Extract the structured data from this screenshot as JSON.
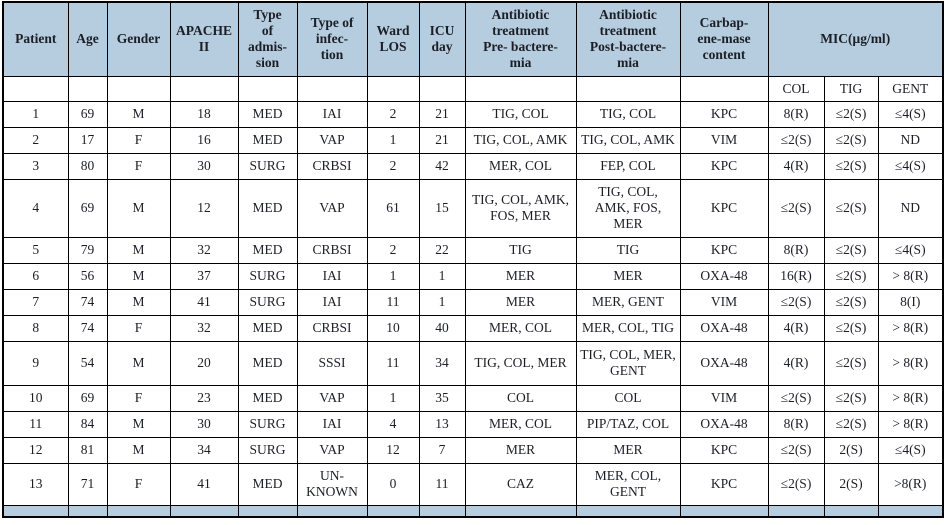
{
  "colors": {
    "header_background": "#b5cdde",
    "grid_line": "#000000",
    "text": "#1c1e26"
  },
  "header": {
    "columns": [
      "Patient",
      "Age",
      "Gender",
      "APACHE\nII",
      "Type\nof\nadmis-\nsion",
      "Type of\ninfec-\ntion",
      "Ward\nLOS",
      "ICU\nday",
      "Antibiotic\ntreatment\nPre- bactere-\nmia",
      "Antibiotic\ntreatment\nPost-bactere-\nmia",
      "Carbap-\nene-mase\ncontent"
    ],
    "mic_label": "MIC(μg/ml)",
    "mic_subcolumns": [
      "COL",
      "TIG",
      "GENT"
    ]
  },
  "rows": [
    [
      "1",
      "69",
      "M",
      "18",
      "MED",
      "IAI",
      "2",
      "21",
      "TIG, COL",
      "TIG, COL",
      "KPC",
      "8(R)",
      "≤2(S)",
      "≤4(S)"
    ],
    [
      "2",
      "17",
      "F",
      "16",
      "MED",
      "VAP",
      "1",
      "21",
      "TIG, COL, AMK",
      "TIG, COL, AMK",
      "VIM",
      "≤2(S)",
      "≤2(S)",
      "ND"
    ],
    [
      "3",
      "80",
      "F",
      "30",
      "SURG",
      "CRBSI",
      "2",
      "42",
      "MER, COL",
      "FEP, COL",
      "KPC",
      "4(R)",
      "≤2(S)",
      "≤4(S)"
    ],
    [
      "4",
      "69",
      "M",
      "12",
      "MED",
      "VAP",
      "61",
      "15",
      "TIG, COL, AMK,\nFOS, MER",
      "TIG, COL,\nAMK, FOS,\nMER",
      "KPC",
      "≤2(S)",
      "≤2(S)",
      "ND"
    ],
    [
      "5",
      "79",
      "M",
      "32",
      "MED",
      "CRBSI",
      "2",
      "22",
      "TIG",
      "TIG",
      "KPC",
      "8(R)",
      "≤2(S)",
      "≤4(S)"
    ],
    [
      "6",
      "56",
      "M",
      "37",
      "SURG",
      "IAI",
      "1",
      "1",
      "MER",
      "MER",
      "OXA-48",
      "16(R)",
      "≤2(S)",
      "> 8(R)"
    ],
    [
      "7",
      "74",
      "M",
      "41",
      "SURG",
      "IAI",
      "11",
      "1",
      "MER",
      "MER, GENT",
      "VIM",
      "≤2(S)",
      "≤2(S)",
      "8(I)"
    ],
    [
      "8",
      "74",
      "F",
      "32",
      "MED",
      "CRBSI",
      "10",
      "40",
      "MER, COL",
      "MER, COL, TIG",
      "OXA-48",
      "4(R)",
      "≤2(S)",
      "> 8(R)"
    ],
    [
      "9",
      "54",
      "M",
      "20",
      "MED",
      "SSSI",
      "11",
      "34",
      "TIG, COL, MER",
      "TIG, COL, MER,\nGENT",
      "OXA-48",
      "4(R)",
      "≤2(S)",
      "> 8(R)"
    ],
    [
      "10",
      "69",
      "F",
      "23",
      "MED",
      "VAP",
      "1",
      "35",
      "COL",
      "COL",
      "VIM",
      "≤2(S)",
      "≤2(S)",
      "> 8(R)"
    ],
    [
      "11",
      "84",
      "M",
      "30",
      "SURG",
      "IAI",
      "4",
      "13",
      "MER, COL",
      "PIP/TAZ, COL",
      "OXA-48",
      "8(R)",
      "≤2(S)",
      "> 8(R)"
    ],
    [
      "12",
      "81",
      "M",
      "34",
      "SURG",
      "VAP",
      "12",
      "7",
      "MER",
      "MER",
      "KPC",
      "≤2(S)",
      "2(S)",
      "≤4(S)"
    ],
    [
      "13",
      "71",
      "F",
      "41",
      "MED",
      "UN-\nKNOWN",
      "0",
      "11",
      "CAZ",
      "MER, COL,\nGENT",
      "KPC",
      "≤2(S)",
      "2(S)",
      ">8(R)"
    ]
  ]
}
